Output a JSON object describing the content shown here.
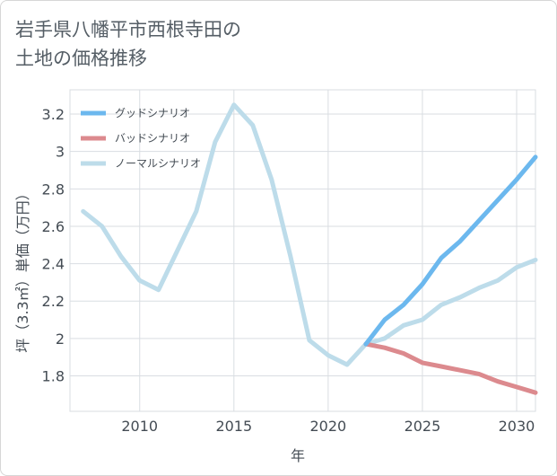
{
  "title": "岩手県八幡平市西根寺田の\n土地の価格推移",
  "chart_data": {
    "type": "line",
    "xlabel": "年",
    "ylabel": "坪（3.3㎡）単価（万円）",
    "xlim": [
      2006.3,
      2031
    ],
    "ylim": [
      1.61,
      3.33
    ],
    "xticks": [
      2010,
      2015,
      2020,
      2025,
      2030
    ],
    "yticks": [
      1.8,
      2,
      2.2,
      2.4,
      2.6,
      2.8,
      3,
      3.2
    ],
    "ytick_labels": [
      "1.8",
      "2",
      "2.2",
      "2.4",
      "2.6",
      "2.8",
      "3",
      "3.2"
    ],
    "grid": true,
    "legend_position": "top-left",
    "series": [
      {
        "name": "グッドシナリオ",
        "color": "#6cb8ee",
        "x": [
          2022,
          2023,
          2024,
          2025,
          2026,
          2027,
          2028,
          2029,
          2030,
          2031
        ],
        "y": [
          1.97,
          2.1,
          2.18,
          2.29,
          2.43,
          2.52,
          2.63,
          2.74,
          2.85,
          2.97
        ]
      },
      {
        "name": "バッドシナリオ",
        "color": "#dc8a8e",
        "x": [
          2022,
          2023,
          2024,
          2025,
          2026,
          2027,
          2028,
          2029,
          2030,
          2031
        ],
        "y": [
          1.97,
          1.95,
          1.92,
          1.87,
          1.85,
          1.83,
          1.81,
          1.77,
          1.74,
          1.71
        ]
      },
      {
        "name": "ノーマルシナリオ",
        "color": "#bddcea",
        "x": [
          2007,
          2008,
          2009,
          2010,
          2011,
          2012,
          2013,
          2014,
          2015,
          2016,
          2017,
          2018,
          2019,
          2020,
          2021,
          2022,
          2023,
          2024,
          2025,
          2026,
          2027,
          2028,
          2029,
          2030,
          2031
        ],
        "y": [
          2.68,
          2.6,
          2.44,
          2.31,
          2.26,
          2.47,
          2.68,
          3.05,
          3.25,
          3.14,
          2.85,
          2.44,
          1.99,
          1.91,
          1.86,
          1.97,
          2.0,
          2.07,
          2.1,
          2.18,
          2.22,
          2.27,
          2.31,
          2.38,
          2.42
        ]
      }
    ]
  }
}
